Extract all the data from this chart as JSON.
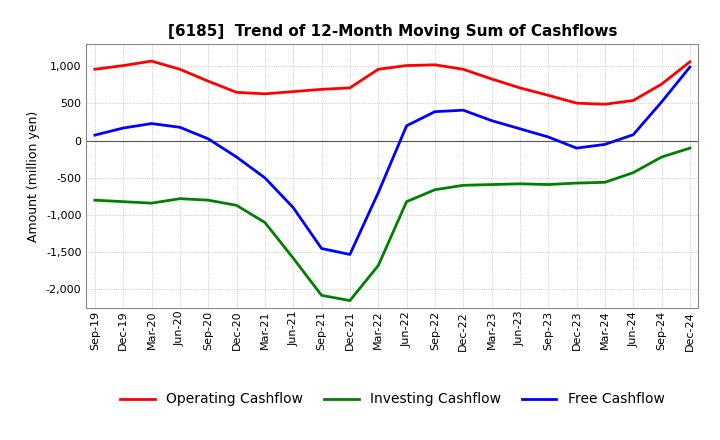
{
  "title": "[6185]  Trend of 12-Month Moving Sum of Cashflows",
  "ylabel": "Amount (million yen)",
  "background_color": "#ffffff",
  "plot_bg_color": "#ffffff",
  "grid_color": "#aaaaaa",
  "ylim": [
    -2250,
    1300
  ],
  "yticks": [
    1000,
    500,
    0,
    -500,
    -1000,
    -1500,
    -2000
  ],
  "x_labels": [
    "Sep-19",
    "Dec-19",
    "Mar-20",
    "Jun-20",
    "Sep-20",
    "Dec-20",
    "Mar-21",
    "Jun-21",
    "Sep-21",
    "Dec-21",
    "Mar-22",
    "Jun-22",
    "Sep-22",
    "Dec-22",
    "Mar-23",
    "Jun-23",
    "Sep-23",
    "Dec-23",
    "Mar-24",
    "Jun-24",
    "Sep-24",
    "Dec-24"
  ],
  "operating": [
    960,
    1010,
    1070,
    960,
    800,
    650,
    630,
    660,
    690,
    710,
    960,
    1010,
    1020,
    960,
    830,
    710,
    610,
    505,
    490,
    540,
    760,
    1060
  ],
  "investing": [
    -800,
    -820,
    -840,
    -780,
    -800,
    -870,
    -1100,
    -1580,
    -2080,
    -2150,
    -1680,
    -820,
    -660,
    -600,
    -590,
    -580,
    -590,
    -570,
    -560,
    -430,
    -220,
    -100
  ],
  "free": [
    75,
    170,
    230,
    180,
    25,
    -220,
    -500,
    -900,
    -1450,
    -1530,
    -700,
    200,
    390,
    410,
    270,
    160,
    50,
    -100,
    -50,
    80,
    520,
    990
  ],
  "operating_color": "#ff0000",
  "investing_color": "#008000",
  "free_color": "#0000ff",
  "line_width": 2.0,
  "title_fontsize": 11,
  "tick_fontsize": 8,
  "legend_fontsize": 10
}
